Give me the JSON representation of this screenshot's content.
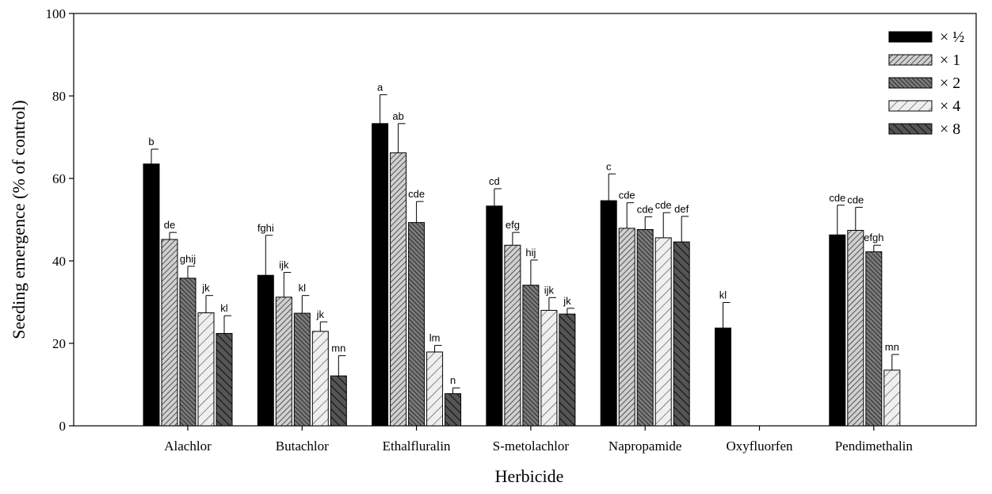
{
  "chart_data": {
    "type": "bar",
    "title": "",
    "xlabel": "Herbicide",
    "ylabel": "Seeding emergence (% of control)",
    "ylim": [
      0,
      100
    ],
    "yticks": [
      0,
      20,
      40,
      60,
      80,
      100
    ],
    "grid": false,
    "legend_position": "top-right",
    "categories": [
      "Alachlor",
      "Butachlor",
      "Ethalfluralin",
      "S-metolachlor",
      "Napropamide",
      "Oxyfluorfen",
      "Pendimethalin"
    ],
    "series": [
      {
        "name": "× ½",
        "fill": "#000000",
        "pattern": "solid",
        "values": [
          63.5,
          36.5,
          73.3,
          53.3,
          54.6,
          23.7,
          46.3
        ],
        "errors": [
          3.6,
          9.7,
          7.0,
          4.2,
          6.5,
          6.2,
          7.2
        ],
        "letters": [
          "b",
          "fghi",
          "a",
          "cd",
          "c",
          "kl",
          "cde"
        ]
      },
      {
        "name": "× 1",
        "fill": "#c8c8c8",
        "pattern": "diag-dense",
        "values": [
          45.2,
          31.2,
          66.2,
          43.8,
          47.9,
          null,
          47.4
        ],
        "errors": [
          1.7,
          6.0,
          7.1,
          3.1,
          6.2,
          null,
          5.6
        ],
        "letters": [
          "de",
          "ijk",
          "ab",
          "efg",
          "cde",
          null,
          "cde"
        ]
      },
      {
        "name": "× 2",
        "fill": "#5a5a5a",
        "pattern": "diag-back",
        "values": [
          35.8,
          27.3,
          49.3,
          34.1,
          47.6,
          null,
          42.2
        ],
        "errors": [
          2.9,
          4.3,
          5.1,
          6.1,
          3.1,
          null,
          1.6
        ],
        "letters": [
          "ghij",
          "kl",
          "cde",
          "hij",
          "cde",
          null,
          "efgh"
        ]
      },
      {
        "name": "× 4",
        "fill": "#ececec",
        "pattern": "diag-sparse",
        "values": [
          27.4,
          22.9,
          17.9,
          28.0,
          45.6,
          null,
          13.5
        ],
        "errors": [
          4.2,
          2.3,
          1.6,
          3.1,
          6.1,
          null,
          3.8
        ],
        "letters": [
          "jk",
          "jk",
          "lm",
          "ijk",
          "cde",
          null,
          "mn"
        ]
      },
      {
        "name": "× 8",
        "fill": "#3c3c3c",
        "pattern": "diag-back-sparse",
        "values": [
          22.4,
          12.1,
          7.8,
          27.1,
          44.6,
          null,
          null
        ],
        "errors": [
          4.3,
          4.9,
          1.4,
          1.4,
          6.2,
          null,
          null
        ],
        "letters": [
          "kl",
          "mn",
          "n",
          "jk",
          "def",
          null,
          null
        ]
      }
    ]
  }
}
